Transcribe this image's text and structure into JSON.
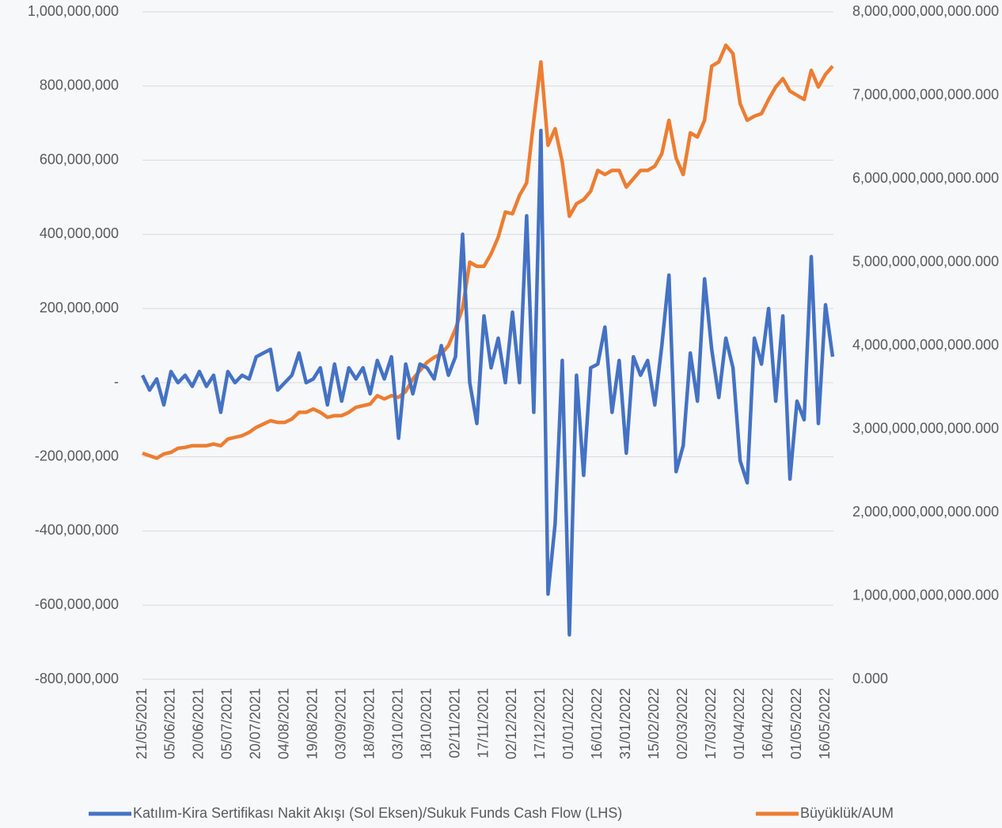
{
  "chart_data": {
    "type": "line",
    "categories": [
      "21/05/2021",
      null,
      null,
      null,
      "05/06/2021",
      null,
      null,
      null,
      "20/06/2021",
      null,
      null,
      null,
      "05/07/2021",
      null,
      null,
      null,
      "20/07/2021",
      null,
      null,
      null,
      "04/08/2021",
      null,
      null,
      null,
      "19/08/2021",
      null,
      null,
      null,
      "03/09/2021",
      null,
      null,
      null,
      "18/09/2021",
      null,
      null,
      null,
      "03/10/2021",
      null,
      null,
      null,
      "18/10/2021",
      null,
      null,
      null,
      "02/11/2021",
      null,
      null,
      null,
      "17/11/2021",
      null,
      null,
      null,
      "02/12/2021",
      null,
      null,
      null,
      "17/12/2021",
      null,
      null,
      null,
      "01/01/2022",
      null,
      null,
      null,
      "16/01/2022",
      null,
      null,
      null,
      "31/01/2022",
      null,
      null,
      null,
      "15/02/2022",
      null,
      null,
      null,
      "02/03/2022",
      null,
      null,
      null,
      "17/03/2022",
      null,
      null,
      null,
      "01/04/2022",
      null,
      null,
      null,
      "16/04/2022",
      null,
      null,
      null,
      "01/05/2022",
      null,
      null,
      null,
      "16/05/2022",
      null
    ],
    "series": [
      {
        "name": "Katılım-Kira Sertifikası Nakit Akışı (Sol Eksen)/Sukuk Funds Cash Flow (LHS)",
        "color": "#4472c4",
        "axis": "y",
        "values": [
          20000000,
          -20000000,
          10000000,
          -60000000,
          30000000,
          0,
          20000000,
          -10000000,
          30000000,
          -10000000,
          20000000,
          -80000000,
          30000000,
          0,
          20000000,
          10000000,
          70000000,
          80000000,
          90000000,
          -20000000,
          0,
          20000000,
          80000000,
          0,
          10000000,
          40000000,
          -60000000,
          50000000,
          -50000000,
          40000000,
          10000000,
          40000000,
          -30000000,
          60000000,
          10000000,
          70000000,
          -150000000,
          50000000,
          -30000000,
          50000000,
          40000000,
          10000000,
          100000000,
          20000000,
          70000000,
          400000000,
          0,
          -110000000,
          180000000,
          40000000,
          120000000,
          0,
          190000000,
          0,
          450000000,
          -80000000,
          680000000,
          -570000000,
          -380000000,
          60000000,
          -680000000,
          20000000,
          -250000000,
          40000000,
          50000000,
          150000000,
          -80000000,
          60000000,
          -190000000,
          70000000,
          20000000,
          60000000,
          -60000000,
          100000000,
          290000000,
          -240000000,
          -170000000,
          80000000,
          -50000000,
          280000000,
          90000000,
          -40000000,
          120000000,
          40000000,
          -210000000,
          -270000000,
          120000000,
          50000000,
          200000000,
          -50000000,
          180000000,
          -260000000,
          -50000000,
          -100000000,
          340000000,
          -110000000,
          210000000,
          70000000
        ]
      },
      {
        "name": "Büyüklük/AUM",
        "color": "#ed7d31",
        "axis": "y2",
        "values": [
          2710000000000,
          2680000000000,
          2650000000000,
          2700000000000,
          2720000000000,
          2770000000000,
          2780000000000,
          2800000000000,
          2800000000000,
          2800000000000,
          2820000000000,
          2800000000000,
          2880000000000,
          2900000000000,
          2920000000000,
          2960000000000,
          3020000000000,
          3060000000000,
          3100000000000,
          3080000000000,
          3080000000000,
          3120000000000,
          3200000000000,
          3200000000000,
          3240000000000,
          3200000000000,
          3140000000000,
          3160000000000,
          3160000000000,
          3200000000000,
          3260000000000,
          3280000000000,
          3300000000000,
          3400000000000,
          3360000000000,
          3400000000000,
          3380000000000,
          3450000000000,
          3600000000000,
          3700000000000,
          3800000000000,
          3860000000000,
          3900000000000,
          4000000000000,
          4200000000000,
          4450000000000,
          5000000000000,
          4950000000000,
          4950000000000,
          5100000000000,
          5300000000000,
          5600000000000,
          5580000000000,
          5800000000000,
          5950000000000,
          6700000000000,
          7400000000000,
          6400000000000,
          6600000000000,
          6200000000000,
          5550000000000,
          5700000000000,
          5750000000000,
          5850000000000,
          6100000000000,
          6050000000000,
          6100000000000,
          6100000000000,
          5900000000000,
          6000000000000,
          6100000000000,
          6100000000000,
          6150000000000,
          6300000000000,
          6700000000000,
          6250000000000,
          6050000000000,
          6550000000000,
          6500000000000,
          6700000000000,
          7350000000000,
          7400000000000,
          7600000000000,
          7500000000000,
          6900000000000,
          6700000000000,
          6750000000000,
          6780000000000,
          6950000000000,
          7100000000000,
          7200000000000,
          7050000000000,
          7000000000000,
          6950000000000,
          7300000000000,
          7100000000000,
          7250000000000,
          7350000000000
        ]
      }
    ],
    "ylim": [
      -800000000,
      1000000000
    ],
    "yticks": [
      {
        "value": -800000000,
        "label": "-800,000,000"
      },
      {
        "value": -600000000,
        "label": "-600,000,000"
      },
      {
        "value": -400000000,
        "label": "-400,000,000"
      },
      {
        "value": -200000000,
        "label": "-200,000,000"
      },
      {
        "value": 0,
        "label": "-"
      },
      {
        "value": 200000000,
        "label": "200,000,000"
      },
      {
        "value": 400000000,
        "label": "400,000,000"
      },
      {
        "value": 600000000,
        "label": "600,000,000"
      },
      {
        "value": 800000000,
        "label": "800,000,000"
      },
      {
        "value": 1000000000,
        "label": "1,000,000,000"
      }
    ],
    "y2lim": [
      0,
      8000000000000
    ],
    "y2ticks": [
      {
        "value": 0,
        "label": "0.000"
      },
      {
        "value": 1000000000000,
        "label": "1,000,000,000,000.000"
      },
      {
        "value": 2000000000000,
        "label": "2,000,000,000,000.000"
      },
      {
        "value": 3000000000000,
        "label": "3,000,000,000,000.000"
      },
      {
        "value": 4000000000000,
        "label": "4,000,000,000,000.000"
      },
      {
        "value": 5000000000000,
        "label": "5,000,000,000,000.000"
      },
      {
        "value": 6000000000000,
        "label": "6,000,000,000,000.000"
      },
      {
        "value": 7000000000000,
        "label": "7,000,000,000,000.000"
      },
      {
        "value": 8000000000000,
        "label": "8,000,000,000,000.000"
      }
    ],
    "grid": true,
    "legend": "bottom"
  }
}
